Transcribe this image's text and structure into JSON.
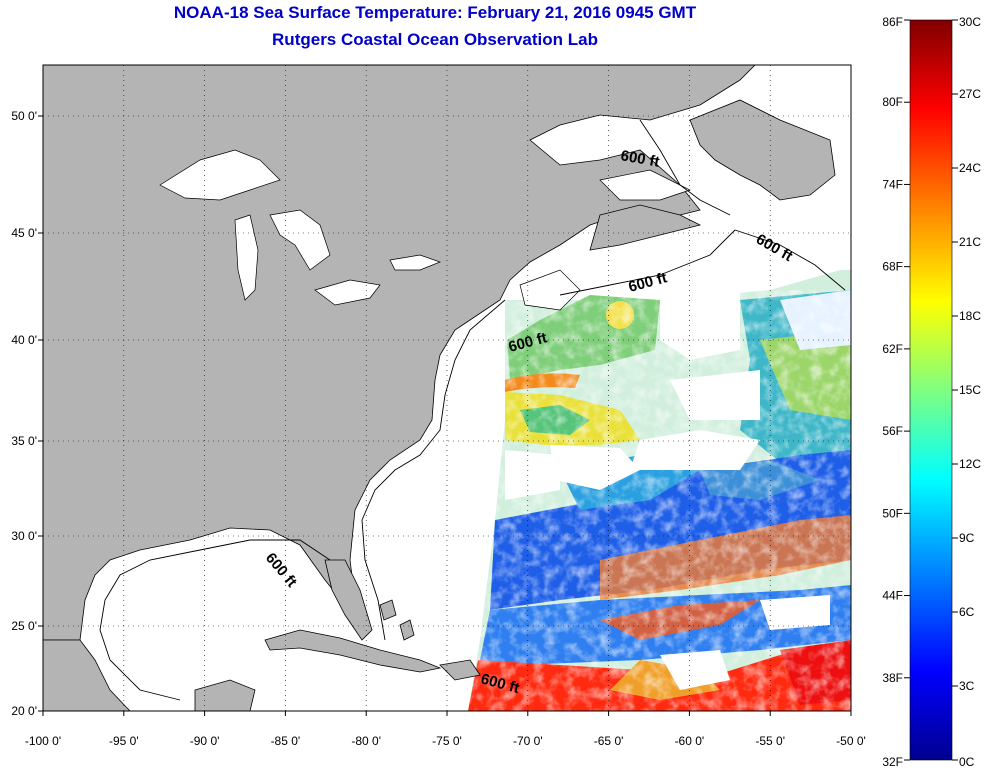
{
  "title": "NOAA-18 Sea Surface Temperature:  February 21, 2016 0945 GMT",
  "subtitle": "Rutgers Coastal Ocean Observation Lab",
  "axes": {
    "lon_ticks": [
      "-100 0'",
      "-95 0'",
      "-90 0'",
      "-85 0'",
      "-80 0'",
      "-75 0'",
      "-70 0'",
      "-65 0'",
      "-60 0'",
      "-55 0'",
      "-50 0'"
    ],
    "lat_ticks": [
      "50 0'",
      "45 0'",
      "40 0'",
      "35 0'",
      "30 0'",
      "25 0'",
      "20 0'"
    ],
    "lon_range": [
      -100,
      -50
    ],
    "lat_range": [
      20,
      52
    ]
  },
  "isobath_labels": [
    "600 ft",
    "600 ft",
    "600 ft",
    "600 ft",
    "600 ft",
    "600 ft"
  ],
  "colorbar": {
    "f_labels": [
      "86F",
      "80F",
      "74F",
      "68F",
      "62F",
      "56F",
      "50F",
      "44F",
      "38F",
      "32F"
    ],
    "c_labels": [
      "30C",
      "27C",
      "24C",
      "21C",
      "18C",
      "15C",
      "12C",
      "9C",
      "6C",
      "3C",
      "0C"
    ],
    "f_range": [
      32,
      86
    ],
    "c_range": [
      0,
      30
    ],
    "colors": [
      "#00008f",
      "#0000ff",
      "#00ffff",
      "#ffff00",
      "#ff0000",
      "#800000"
    ]
  },
  "colors": {
    "land": "#b4b4b4",
    "ocean_clear": "#ffffff",
    "title": "#0000c8"
  }
}
